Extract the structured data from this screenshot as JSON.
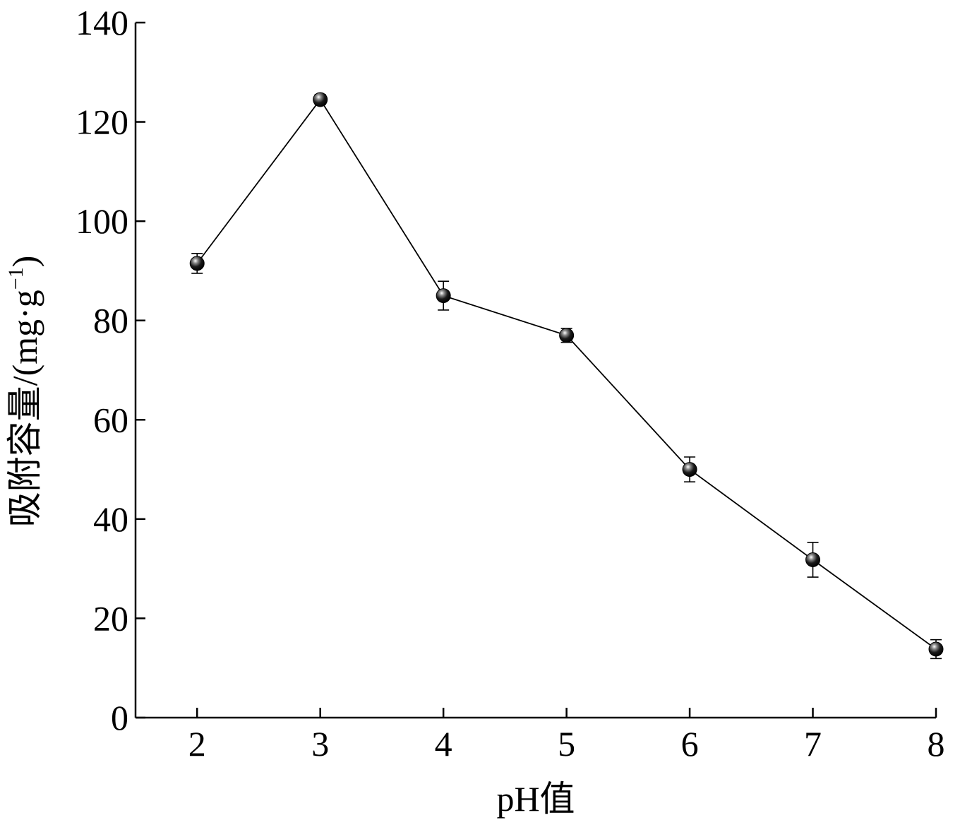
{
  "chart_data": {
    "type": "line",
    "title": "",
    "xlabel": "pH值",
    "ylabel": "吸附容量/(mg·g",
    "ylabel_sup": "−1",
    "ylabel_end": ")",
    "xlim": [
      1.5,
      8
    ],
    "ylim": [
      0,
      140
    ],
    "xticks": [
      2,
      3,
      4,
      5,
      6,
      7,
      8
    ],
    "yticks": [
      0,
      20,
      40,
      60,
      80,
      100,
      120,
      140
    ],
    "grid": false,
    "legend": "none",
    "series": [
      {
        "x": [
          2,
          3,
          4,
          5,
          6,
          7,
          8
        ],
        "y": [
          91.5,
          124.5,
          85,
          77,
          50,
          31.8,
          13.8
        ],
        "error": [
          2.0,
          1.0,
          2.9,
          1.4,
          2.5,
          3.5,
          1.9
        ]
      }
    ],
    "colors": {
      "line": "#000000",
      "marker": "#000000",
      "marker_highlight": "#ffffff"
    }
  }
}
